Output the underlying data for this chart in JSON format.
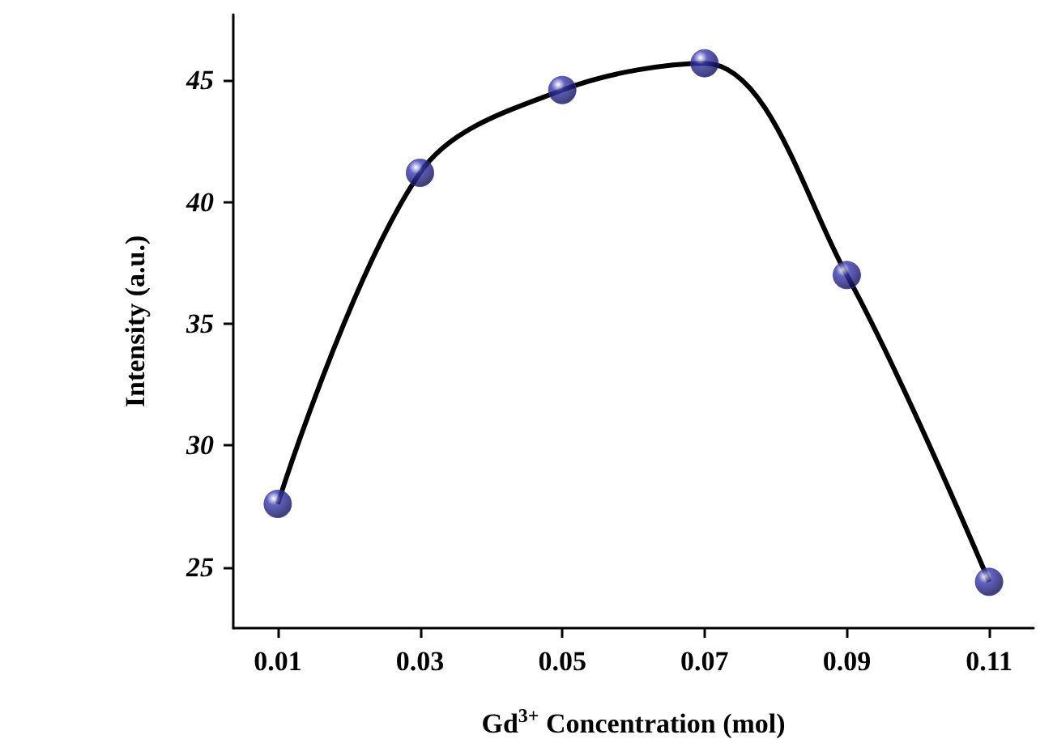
{
  "chart_data": {
    "type": "line",
    "xlabel": "Gd$^{3+}$ Concentration (mol)",
    "ylabel": "Intensity (a.u.)",
    "x": [
      0.01,
      0.03,
      0.05,
      0.07,
      0.09,
      0.11
    ],
    "series": [
      {
        "color": "#000000",
        "marker": "none",
        "values": [
          27.6,
          41.2,
          44.6,
          45.7,
          37.0,
          24.4
        ]
      },
      {
        "type": "scatter",
        "color": "#3a3ab4",
        "marker": "circle",
        "values": [
          27.6,
          41.2,
          44.6,
          45.7,
          37.0,
          24.4
        ]
      }
    ],
    "xlim": [
      0.00375,
      0.11625
    ],
    "xticks": [
      {
        "value": 0.01,
        "label": "0.01"
      },
      {
        "value": 0.03,
        "label": "0.03"
      },
      {
        "value": 0.05,
        "label": "0.05"
      },
      {
        "value": 0.07,
        "label": "0.07"
      },
      {
        "value": 0.09,
        "label": "0.09"
      },
      {
        "value": 0.11,
        "label": "0.11"
      }
    ],
    "ylim": [
      22.5,
      47.7
    ],
    "yticks": [
      25,
      30,
      35,
      40,
      45
    ],
    "grid": false
  }
}
